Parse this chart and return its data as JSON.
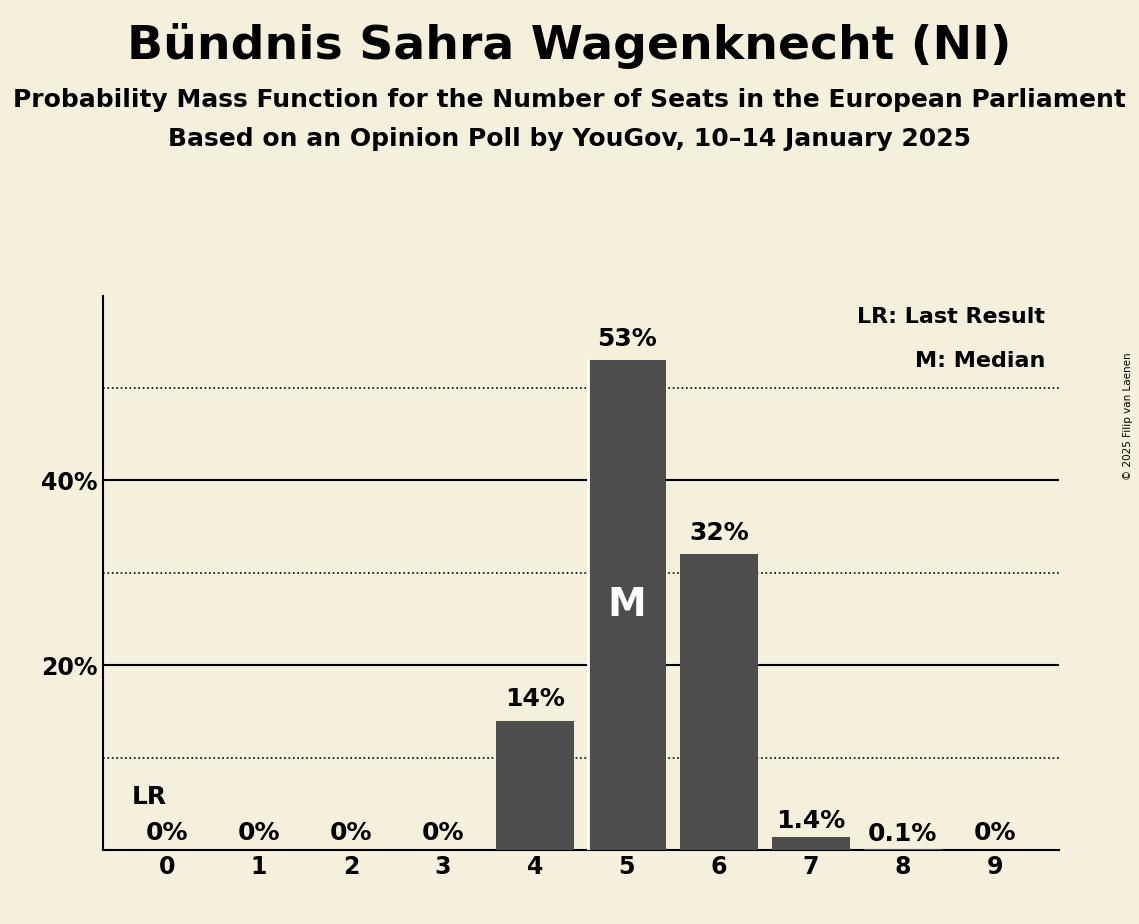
{
  "title": "Bündnis Sahra Wagenknecht (NI)",
  "subtitle1": "Probability Mass Function for the Number of Seats in the European Parliament",
  "subtitle2": "Based on an Opinion Poll by YouGov, 10–14 January 2025",
  "copyright": "© 2025 Filip van Laenen",
  "seats": [
    0,
    1,
    2,
    3,
    4,
    5,
    6,
    7,
    8,
    9
  ],
  "probabilities": [
    0.0,
    0.0,
    0.0,
    0.0,
    14.0,
    53.0,
    32.0,
    1.4,
    0.1,
    0.0
  ],
  "bar_color": "#4d4d4d",
  "bg_color": "#f5f0dc",
  "median_seat": 5,
  "lr_seat": 0,
  "dotted_lines": [
    10,
    30,
    50
  ],
  "solid_lines": [
    20,
    40
  ],
  "label_fontsize": 17,
  "title_fontsize": 34,
  "subtitle_fontsize": 18,
  "bar_label_fontsize": 18,
  "median_label": "M",
  "lr_label": "LR",
  "legend_lr": "LR: Last Result",
  "legend_m": "M: Median",
  "ymax": 60
}
